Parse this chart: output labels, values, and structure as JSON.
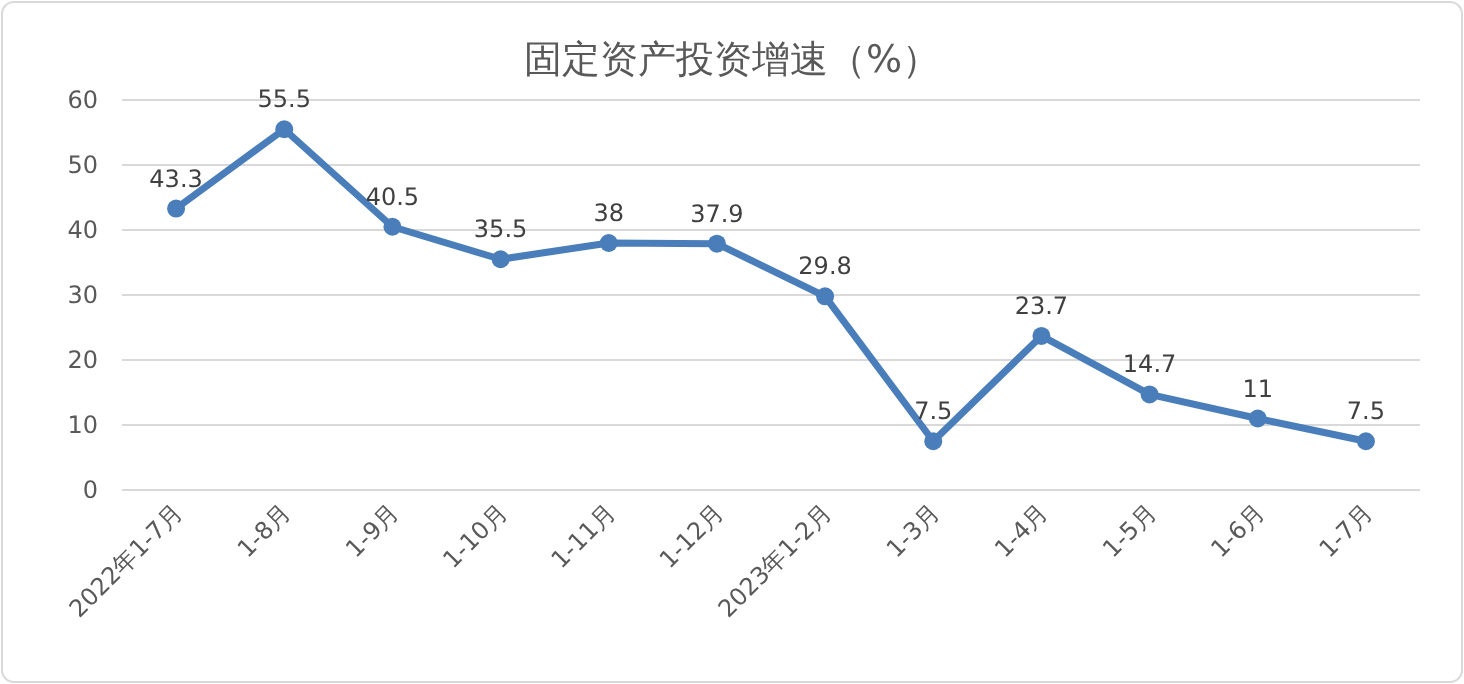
{
  "chart_data": {
    "type": "line",
    "title": "固定资产投资增速（%）",
    "categories": [
      "2022年1-7月",
      "1-8月",
      "1-9月",
      "1-10月",
      "1-11月",
      "1-12月",
      "2023年1-2月",
      "1-3月",
      "1-4月",
      "1-5月",
      "1-6月",
      "1-7月"
    ],
    "series": [
      {
        "color": "#4a7ebb",
        "values": [
          43.3,
          55.5,
          40.5,
          35.5,
          38,
          37.9,
          29.8,
          7.5,
          23.7,
          14.7,
          11,
          7.5
        ]
      }
    ],
    "ylim": [
      0,
      60
    ],
    "yticks": [
      0,
      10,
      20,
      30,
      40,
      50,
      60
    ],
    "grid": "y",
    "data_labels": true,
    "marker": "circle",
    "line_style": "solid"
  }
}
